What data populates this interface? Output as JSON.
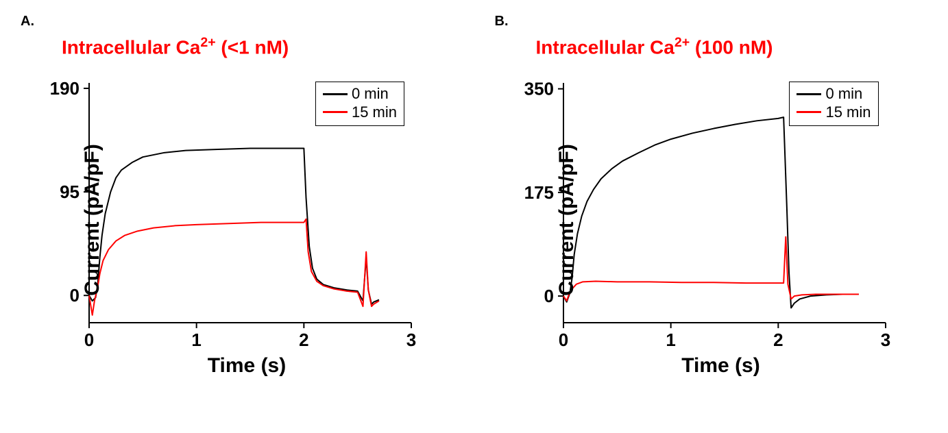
{
  "panels": {
    "A": {
      "letter": "A.",
      "title_prefix": "Intracellular Ca",
      "title_sup": "2+",
      "title_suffix": " (<1 nM)",
      "title_color": "#ff0000",
      "chart": {
        "type": "line",
        "xlim": [
          0,
          3
        ],
        "ylim": [
          -25,
          195
        ],
        "xticks": [
          0,
          1,
          2,
          3
        ],
        "yticks": [
          0,
          95,
          190
        ],
        "xlabel": "Time (s)",
        "ylabel": "Current (pA/pF)",
        "axis_color": "#000000",
        "axis_width": 2,
        "tick_fontsize": 26,
        "label_fontsize": 30,
        "label_fontweight": "bold",
        "background_color": "#ffffff",
        "grid": false,
        "line_width": 2,
        "legend": {
          "position": "top-right",
          "items": [
            {
              "label": "0 min",
              "color": "#000000"
            },
            {
              "label": "15 min",
              "color": "#ff0000"
            }
          ],
          "border_color": "#000000",
          "fontsize": 22
        },
        "series": [
          {
            "name": "0 min",
            "color": "#000000",
            "points": [
              [
                0.0,
                0
              ],
              [
                0.03,
                -5
              ],
              [
                0.06,
                -2
              ],
              [
                0.08,
                10
              ],
              [
                0.1,
                35
              ],
              [
                0.12,
                55
              ],
              [
                0.15,
                75
              ],
              [
                0.2,
                95
              ],
              [
                0.25,
                108
              ],
              [
                0.3,
                115
              ],
              [
                0.4,
                122
              ],
              [
                0.5,
                127
              ],
              [
                0.7,
                131
              ],
              [
                0.9,
                133
              ],
              [
                1.2,
                134
              ],
              [
                1.5,
                135
              ],
              [
                1.8,
                135
              ],
              [
                2.0,
                135
              ],
              [
                2.02,
                90
              ],
              [
                2.05,
                45
              ],
              [
                2.08,
                25
              ],
              [
                2.12,
                15
              ],
              [
                2.18,
                10
              ],
              [
                2.28,
                7
              ],
              [
                2.4,
                5
              ],
              [
                2.5,
                4
              ],
              [
                2.55,
                -5
              ],
              [
                2.58,
                35
              ],
              [
                2.6,
                5
              ],
              [
                2.63,
                -8
              ],
              [
                2.65,
                -6
              ],
              [
                2.7,
                -4
              ]
            ]
          },
          {
            "name": "15 min",
            "color": "#ff0000",
            "points": [
              [
                0.0,
                0
              ],
              [
                0.03,
                -18
              ],
              [
                0.05,
                -5
              ],
              [
                0.08,
                8
              ],
              [
                0.1,
                20
              ],
              [
                0.13,
                32
              ],
              [
                0.18,
                42
              ],
              [
                0.25,
                50
              ],
              [
                0.33,
                55
              ],
              [
                0.45,
                59
              ],
              [
                0.6,
                62
              ],
              [
                0.8,
                64
              ],
              [
                1.0,
                65
              ],
              [
                1.3,
                66
              ],
              [
                1.6,
                67
              ],
              [
                1.9,
                67
              ],
              [
                2.0,
                67
              ],
              [
                2.02,
                70
              ],
              [
                2.04,
                40
              ],
              [
                2.07,
                22
              ],
              [
                2.12,
                13
              ],
              [
                2.18,
                9
              ],
              [
                2.28,
                6
              ],
              [
                2.4,
                4
              ],
              [
                2.5,
                3
              ],
              [
                2.55,
                -10
              ],
              [
                2.58,
                40
              ],
              [
                2.6,
                5
              ],
              [
                2.63,
                -10
              ],
              [
                2.65,
                -8
              ],
              [
                2.7,
                -5
              ]
            ]
          }
        ]
      }
    },
    "B": {
      "letter": "B.",
      "title_prefix": "Intracellular Ca",
      "title_sup": "2+",
      "title_suffix": " (100 nM)",
      "title_color": "#ff0000",
      "chart": {
        "type": "line",
        "xlim": [
          0,
          3
        ],
        "ylim": [
          -45,
          360
        ],
        "xticks": [
          0,
          1,
          2,
          3
        ],
        "yticks": [
          0,
          175,
          350
        ],
        "xlabel": "Time (s)",
        "ylabel": "Current (pA/pF)",
        "axis_color": "#000000",
        "axis_width": 2,
        "tick_fontsize": 26,
        "label_fontsize": 30,
        "label_fontweight": "bold",
        "background_color": "#ffffff",
        "grid": false,
        "line_width": 2,
        "legend": {
          "position": "top-right",
          "items": [
            {
              "label": "0 min",
              "color": "#000000"
            },
            {
              "label": "15 min",
              "color": "#ff0000"
            }
          ],
          "border_color": "#000000",
          "fontsize": 22
        },
        "series": [
          {
            "name": "0 min",
            "color": "#000000",
            "points": [
              [
                0.0,
                0
              ],
              [
                0.03,
                -10
              ],
              [
                0.06,
                5
              ],
              [
                0.08,
                30
              ],
              [
                0.1,
                70
              ],
              [
                0.13,
                105
              ],
              [
                0.17,
                135
              ],
              [
                0.22,
                160
              ],
              [
                0.28,
                180
              ],
              [
                0.35,
                198
              ],
              [
                0.45,
                215
              ],
              [
                0.55,
                228
              ],
              [
                0.7,
                242
              ],
              [
                0.85,
                255
              ],
              [
                1.0,
                265
              ],
              [
                1.2,
                275
              ],
              [
                1.4,
                283
              ],
              [
                1.6,
                290
              ],
              [
                1.8,
                296
              ],
              [
                2.0,
                300
              ],
              [
                2.05,
                302
              ],
              [
                2.08,
                150
              ],
              [
                2.1,
                40
              ],
              [
                2.12,
                -20
              ],
              [
                2.15,
                -12
              ],
              [
                2.2,
                -5
              ],
              [
                2.3,
                0
              ],
              [
                2.45,
                2
              ],
              [
                2.6,
                3
              ],
              [
                2.75,
                3
              ]
            ]
          },
          {
            "name": "15 min",
            "color": "#ff0000",
            "points": [
              [
                0.0,
                0
              ],
              [
                0.03,
                -8
              ],
              [
                0.05,
                2
              ],
              [
                0.08,
                12
              ],
              [
                0.12,
                20
              ],
              [
                0.18,
                24
              ],
              [
                0.3,
                25
              ],
              [
                0.5,
                24
              ],
              [
                0.8,
                24
              ],
              [
                1.1,
                23
              ],
              [
                1.4,
                23
              ],
              [
                1.7,
                22
              ],
              [
                2.0,
                22
              ],
              [
                2.05,
                22
              ],
              [
                2.07,
                100
              ],
              [
                2.09,
                20
              ],
              [
                2.12,
                -5
              ],
              [
                2.15,
                0
              ],
              [
                2.22,
                2
              ],
              [
                2.35,
                3
              ],
              [
                2.55,
                3
              ],
              [
                2.75,
                3
              ]
            ]
          }
        ]
      }
    }
  }
}
